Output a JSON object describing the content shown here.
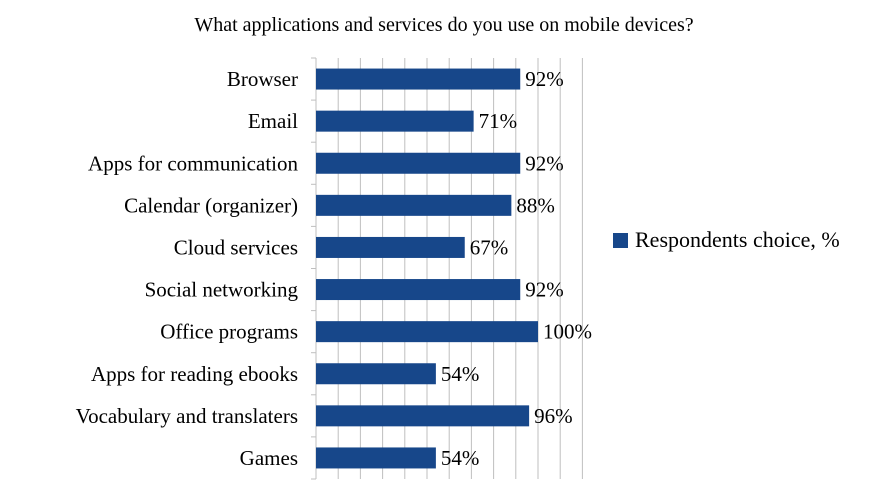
{
  "chart_data": {
    "type": "bar",
    "orientation": "horizontal",
    "title": "What applications and services do you use on mobile devices?",
    "xlabel": "",
    "ylabel": "",
    "categories": [
      "Browser",
      "Email",
      "Apps for communication",
      "Calendar (organizer)",
      "Cloud services",
      "Social networking",
      "Office programs",
      "Apps for reading ebooks",
      "Vocabulary and translaters",
      "Games"
    ],
    "series": [
      {
        "name": "Respondents choice, %",
        "values": [
          92,
          71,
          92,
          88,
          67,
          92,
          100,
          54,
          96,
          54
        ],
        "labels": [
          "92%",
          "71%",
          "92%",
          "88%",
          "67%",
          "92%",
          "100%",
          "54%",
          "96%",
          "54%"
        ],
        "color": "#17478a"
      }
    ],
    "xlim": [
      0,
      120
    ],
    "grid": true,
    "gridline_color": "#bfbfbf",
    "legend_position": "right"
  }
}
